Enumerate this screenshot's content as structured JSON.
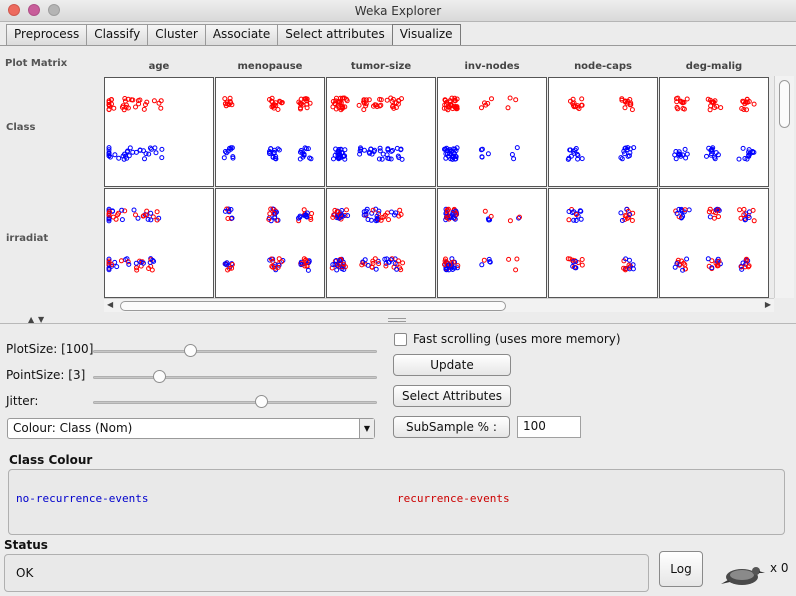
{
  "window": {
    "title": "Weka Explorer",
    "traffic_colors": [
      "#ed6a5e",
      "#c85d9a",
      "#b4b4b4"
    ]
  },
  "tabs": [
    "Preprocess",
    "Classify",
    "Cluster",
    "Associate",
    "Select attributes",
    "Visualize"
  ],
  "selected_tab": "Visualize",
  "plot_matrix": {
    "label": "Plot Matrix",
    "columns": [
      "age",
      "menopause",
      "tumor-size",
      "inv-nodes",
      "node-caps",
      "deg-malig"
    ],
    "rows": [
      "Class",
      "irradiat"
    ],
    "class_colors": {
      "no-recurrence-events": "#0000ff",
      "recurrence-events": "#ff0000"
    }
  },
  "controls": {
    "plot_size": {
      "label": "PlotSize: [100]",
      "value": 100
    },
    "point_size": {
      "label": "PointSize: [3]",
      "value": 3
    },
    "jitter": {
      "label": "Jitter:"
    },
    "colour_select": "Colour: Class  (Nom)",
    "fast_scrolling": {
      "label": "Fast scrolling (uses more memory)",
      "checked": false
    },
    "update_button": "Update",
    "select_attributes_button": "Select Attributes",
    "subsample_button": "SubSample % :",
    "subsample_value": "100"
  },
  "class_colour": {
    "title": "Class Colour",
    "items": [
      {
        "label": "no-recurrence-events",
        "color": "#0000cc"
      },
      {
        "label": "recurrence-events",
        "color": "#cc0000"
      }
    ]
  },
  "status": {
    "title": "Status",
    "text": "OK",
    "log_button": "Log",
    "count": "x 0"
  },
  "icons": [
    "weka-bird-icon",
    "chevron-up-icon",
    "chevron-down-icon"
  ]
}
